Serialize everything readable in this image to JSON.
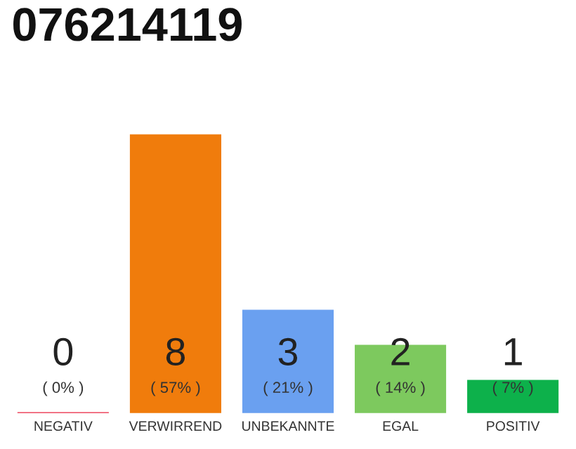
{
  "chart_data": {
    "type": "bar",
    "title": "076214119",
    "categories": [
      "NEGATIV",
      "VERWIRREND",
      "UNBEKANNTE",
      "EGAL",
      "POSITIV"
    ],
    "values": [
      0,
      8,
      3,
      2,
      1
    ],
    "colors": [
      "#e8203c",
      "#f07c0c",
      "#6aa0f0",
      "#7dc95e",
      "#0db14b"
    ],
    "value_labels": [
      "0\n( 0% )",
      "8\n( 57% )",
      "3\n( 21% )",
      "2\n( 14% )",
      "1\n( 7% )"
    ],
    "grid": false,
    "legend": false
  }
}
